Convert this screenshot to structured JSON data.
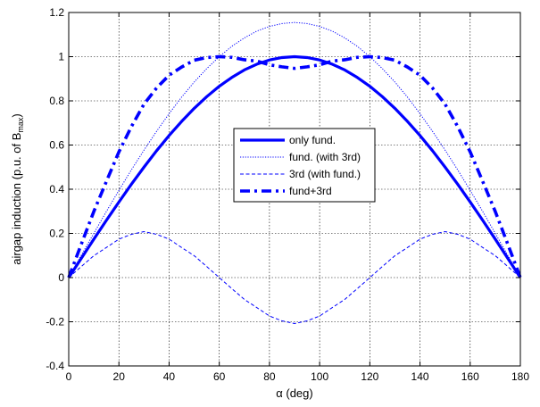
{
  "chart_data": {
    "type": "line",
    "title": "",
    "xlabel": "α (deg)",
    "ylabel_main": "airgap induction (p.u. of B",
    "ylabel_sub": "max",
    "ylabel_tail": ")",
    "xlim": [
      0,
      180
    ],
    "ylim": [
      -0.4,
      1.2
    ],
    "xticks": [
      0,
      20,
      40,
      60,
      80,
      100,
      120,
      140,
      160,
      180
    ],
    "yticks": [
      -0.4,
      -0.2,
      0,
      0.2,
      0.4,
      0.6,
      0.8,
      1,
      1.2
    ],
    "xtick_labels": [
      "0",
      "20",
      "40",
      "60",
      "80",
      "100",
      "120",
      "140",
      "160",
      "180"
    ],
    "ytick_labels": [
      "-0.4",
      "-0.2",
      "0",
      "0.2",
      "0.4",
      "0.6",
      "0.8",
      "1",
      "1.2"
    ],
    "grid": true,
    "legend_position": "center",
    "x": [
      0,
      5,
      10,
      15,
      20,
      25,
      30,
      35,
      40,
      45,
      50,
      55,
      60,
      65,
      70,
      75,
      80,
      85,
      90,
      95,
      100,
      105,
      110,
      115,
      120,
      125,
      130,
      135,
      140,
      145,
      150,
      155,
      160,
      165,
      170,
      175,
      180
    ],
    "series": [
      {
        "name": "only fund.",
        "color": "#0000ff",
        "style": "solid-thick",
        "values": [
          0,
          0.087,
          0.174,
          0.259,
          0.342,
          0.423,
          0.5,
          0.574,
          0.643,
          0.707,
          0.766,
          0.819,
          0.866,
          0.906,
          0.94,
          0.966,
          0.985,
          0.996,
          1,
          0.996,
          0.985,
          0.966,
          0.94,
          0.906,
          0.866,
          0.819,
          0.766,
          0.707,
          0.643,
          0.574,
          0.5,
          0.423,
          0.342,
          0.259,
          0.174,
          0.087,
          0
        ]
      },
      {
        "name": "fund. (with 3rd)",
        "color": "#0000ff",
        "style": "dotted-thin",
        "values": [
          0,
          0.101,
          0.2,
          0.299,
          0.395,
          0.488,
          0.577,
          0.662,
          0.742,
          0.817,
          0.885,
          0.946,
          1.0,
          1.047,
          1.085,
          1.116,
          1.137,
          1.15,
          1.155,
          1.15,
          1.137,
          1.116,
          1.085,
          1.047,
          1.0,
          0.946,
          0.885,
          0.817,
          0.742,
          0.662,
          0.577,
          0.488,
          0.395,
          0.299,
          0.2,
          0.101,
          0
        ]
      },
      {
        "name": "3rd (with fund.)",
        "color": "#0000ff",
        "style": "dashed-thin",
        "values": [
          0,
          0.05,
          0.099,
          0.136,
          0.174,
          0.196,
          0.208,
          0.196,
          0.174,
          0.136,
          0.099,
          0.05,
          0,
          -0.05,
          -0.099,
          -0.136,
          -0.174,
          -0.196,
          -0.208,
          -0.196,
          -0.174,
          -0.136,
          -0.099,
          -0.05,
          0,
          0.05,
          0.099,
          0.136,
          0.174,
          0.196,
          0.208,
          0.196,
          0.174,
          0.136,
          0.099,
          0.05,
          0
        ]
      },
      {
        "name": "fund+3rd",
        "color": "#0000ff",
        "style": "dashdot-thick",
        "values": [
          0,
          0.151,
          0.299,
          0.435,
          0.569,
          0.684,
          0.785,
          0.858,
          0.916,
          0.953,
          0.984,
          0.996,
          1.0,
          0.997,
          0.986,
          0.98,
          0.963,
          0.954,
          0.947,
          0.954,
          0.963,
          0.98,
          0.986,
          0.997,
          1.0,
          0.996,
          0.984,
          0.953,
          0.916,
          0.858,
          0.785,
          0.684,
          0.569,
          0.435,
          0.299,
          0.151,
          0
        ]
      }
    ]
  }
}
